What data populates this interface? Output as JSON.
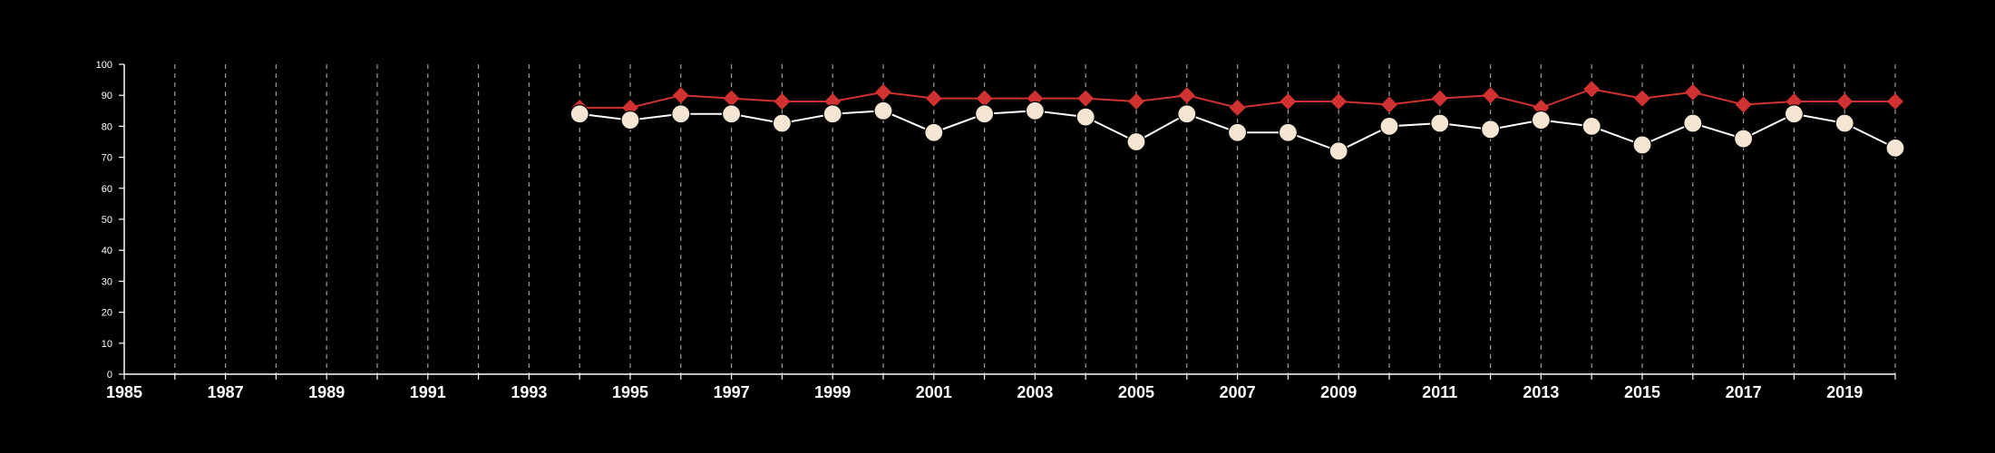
{
  "chart_data": {
    "type": "line",
    "title": "",
    "xlabel": "",
    "ylabel": "",
    "xlim": [
      1985,
      2020
    ],
    "ylim": [
      0,
      100
    ],
    "x_ticks": [
      1985,
      1987,
      1989,
      1991,
      1993,
      1995,
      1997,
      1999,
      2001,
      2003,
      2005,
      2007,
      2009,
      2011,
      2013,
      2015,
      2017,
      2019
    ],
    "y_ticks": [
      0,
      10,
      20,
      30,
      40,
      50,
      60,
      70,
      80,
      90,
      100
    ],
    "vertical_gridlines": "dashed, every year",
    "legend": "none",
    "x": [
      1994,
      1995,
      1996,
      1997,
      1998,
      1999,
      2000,
      2001,
      2002,
      2003,
      2004,
      2005,
      2006,
      2007,
      2008,
      2009,
      2010,
      2011,
      2012,
      2013,
      2014,
      2015,
      2016,
      2017,
      2018,
      2019,
      2020
    ],
    "series": [
      {
        "marker": "diamond",
        "color": "#d03232",
        "values": [
          86,
          86,
          90,
          89,
          88,
          88,
          91,
          89,
          89,
          89,
          89,
          88,
          90,
          86,
          88,
          88,
          87,
          89,
          90,
          86,
          92,
          89,
          91,
          87,
          88,
          88,
          88
        ]
      },
      {
        "marker": "circle",
        "color": "#f5e6d3",
        "line_color": "#ffffff",
        "values": [
          84,
          82,
          84,
          84,
          81,
          84,
          85,
          78,
          84,
          85,
          83,
          75,
          84,
          78,
          78,
          72,
          80,
          81,
          79,
          82,
          80,
          74,
          81,
          76,
          84,
          81,
          73
        ]
      }
    ]
  }
}
